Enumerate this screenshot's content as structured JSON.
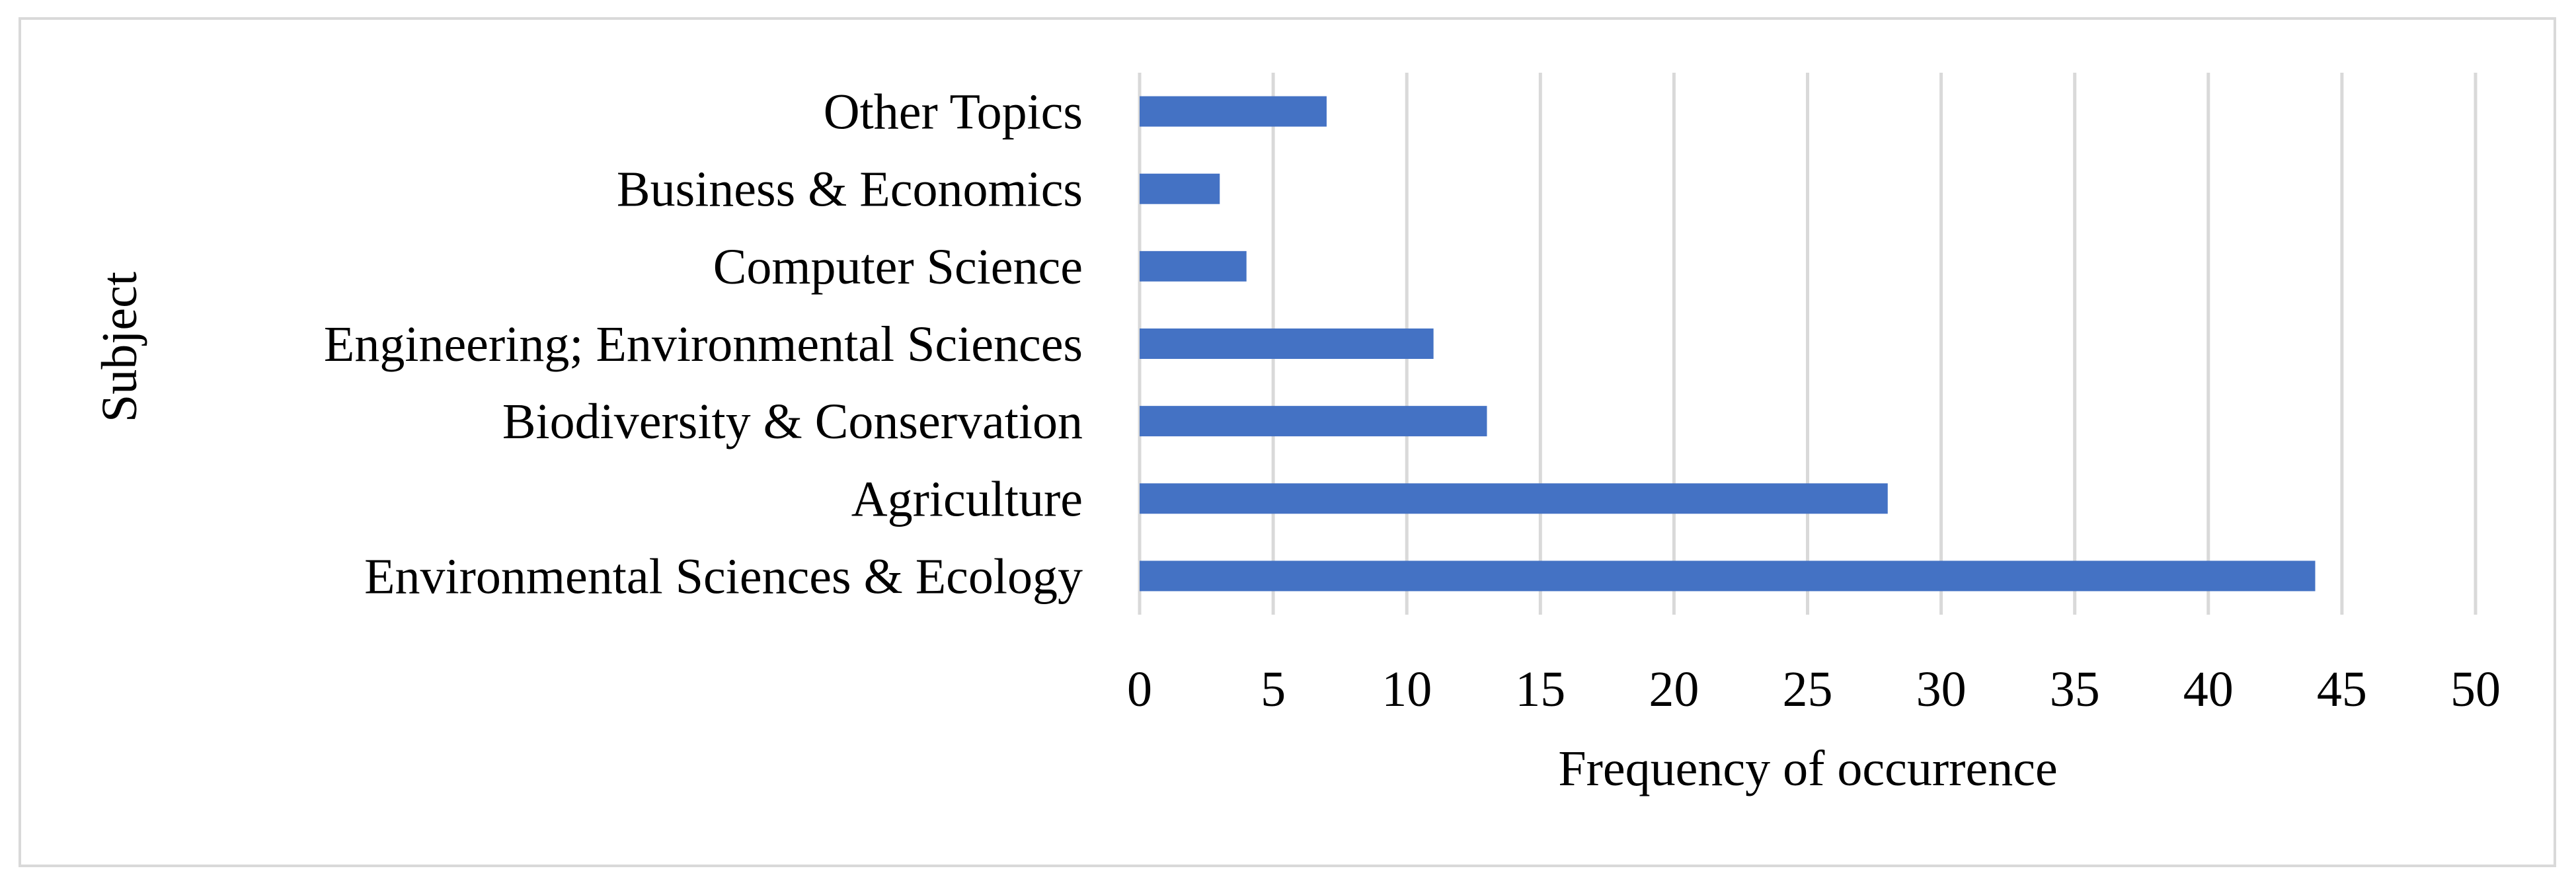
{
  "chart_data": {
    "type": "bar",
    "orientation": "horizontal",
    "title": "",
    "xlabel": "Frequency of occurrence",
    "ylabel": "Subject",
    "categories": [
      "Environmental Sciences & Ecology",
      "Agriculture",
      "Biodiversity & Conservation",
      "Engineering; Environmental Sciences",
      "Computer Science",
      "Business & Economics",
      "Other Topics"
    ],
    "values": [
      44,
      28,
      13,
      11,
      4,
      3,
      7
    ],
    "xlim": [
      0,
      50
    ],
    "xticks": [
      "0",
      "5",
      "10",
      "15",
      "20",
      "25",
      "30",
      "35",
      "40",
      "45",
      "50"
    ],
    "grid": "vertical",
    "legend": "none",
    "colors": {
      "bar": "#4472c4",
      "grid": "#d9d9d9",
      "frame": "#d9d9d9"
    }
  }
}
